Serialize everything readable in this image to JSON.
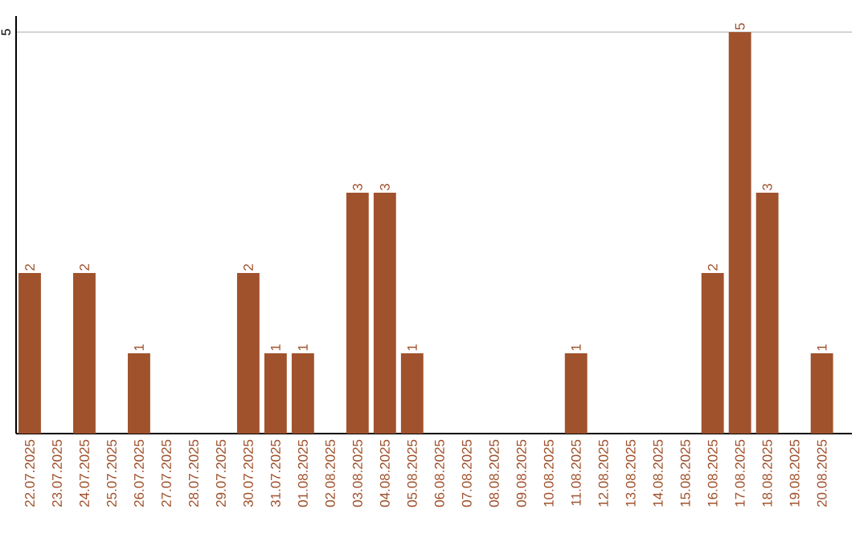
{
  "chart_data": {
    "type": "bar",
    "categories": [
      "22.07.2025",
      "23.07.2025",
      "24.07.2025",
      "25.07.2025",
      "26.07.2025",
      "27.07.2025",
      "28.07.2025",
      "29.07.2025",
      "30.07.2025",
      "31.07.2025",
      "01.08.2025",
      "02.08.2025",
      "03.08.2025",
      "04.08.2025",
      "05.08.2025",
      "06.08.2025",
      "07.08.2025",
      "08.08.2025",
      "09.08.2025",
      "10.08.2025",
      "11.08.2025",
      "12.08.2025",
      "13.08.2025",
      "14.08.2025",
      "15.08.2025",
      "16.08.2025",
      "17.08.2025",
      "18.08.2025",
      "19.08.2025",
      "20.08.2025"
    ],
    "values": [
      2,
      0,
      2,
      0,
      1,
      0,
      0,
      0,
      2,
      1,
      1,
      0,
      3,
      3,
      1,
      0,
      0,
      0,
      0,
      0,
      1,
      0,
      0,
      0,
      0,
      2,
      5,
      3,
      0,
      1
    ],
    "value_labels": [
      "2",
      null,
      "2",
      null,
      "1",
      null,
      null,
      null,
      "2",
      "1",
      "1",
      null,
      "3",
      "3",
      "1",
      null,
      null,
      null,
      null,
      null,
      "1",
      null,
      null,
      null,
      null,
      "2",
      "5",
      "3",
      null,
      "1"
    ],
    "color": "#a0522d",
    "ylim": [
      0,
      5.2
    ],
    "yticks": [
      5
    ],
    "grid": "y"
  }
}
